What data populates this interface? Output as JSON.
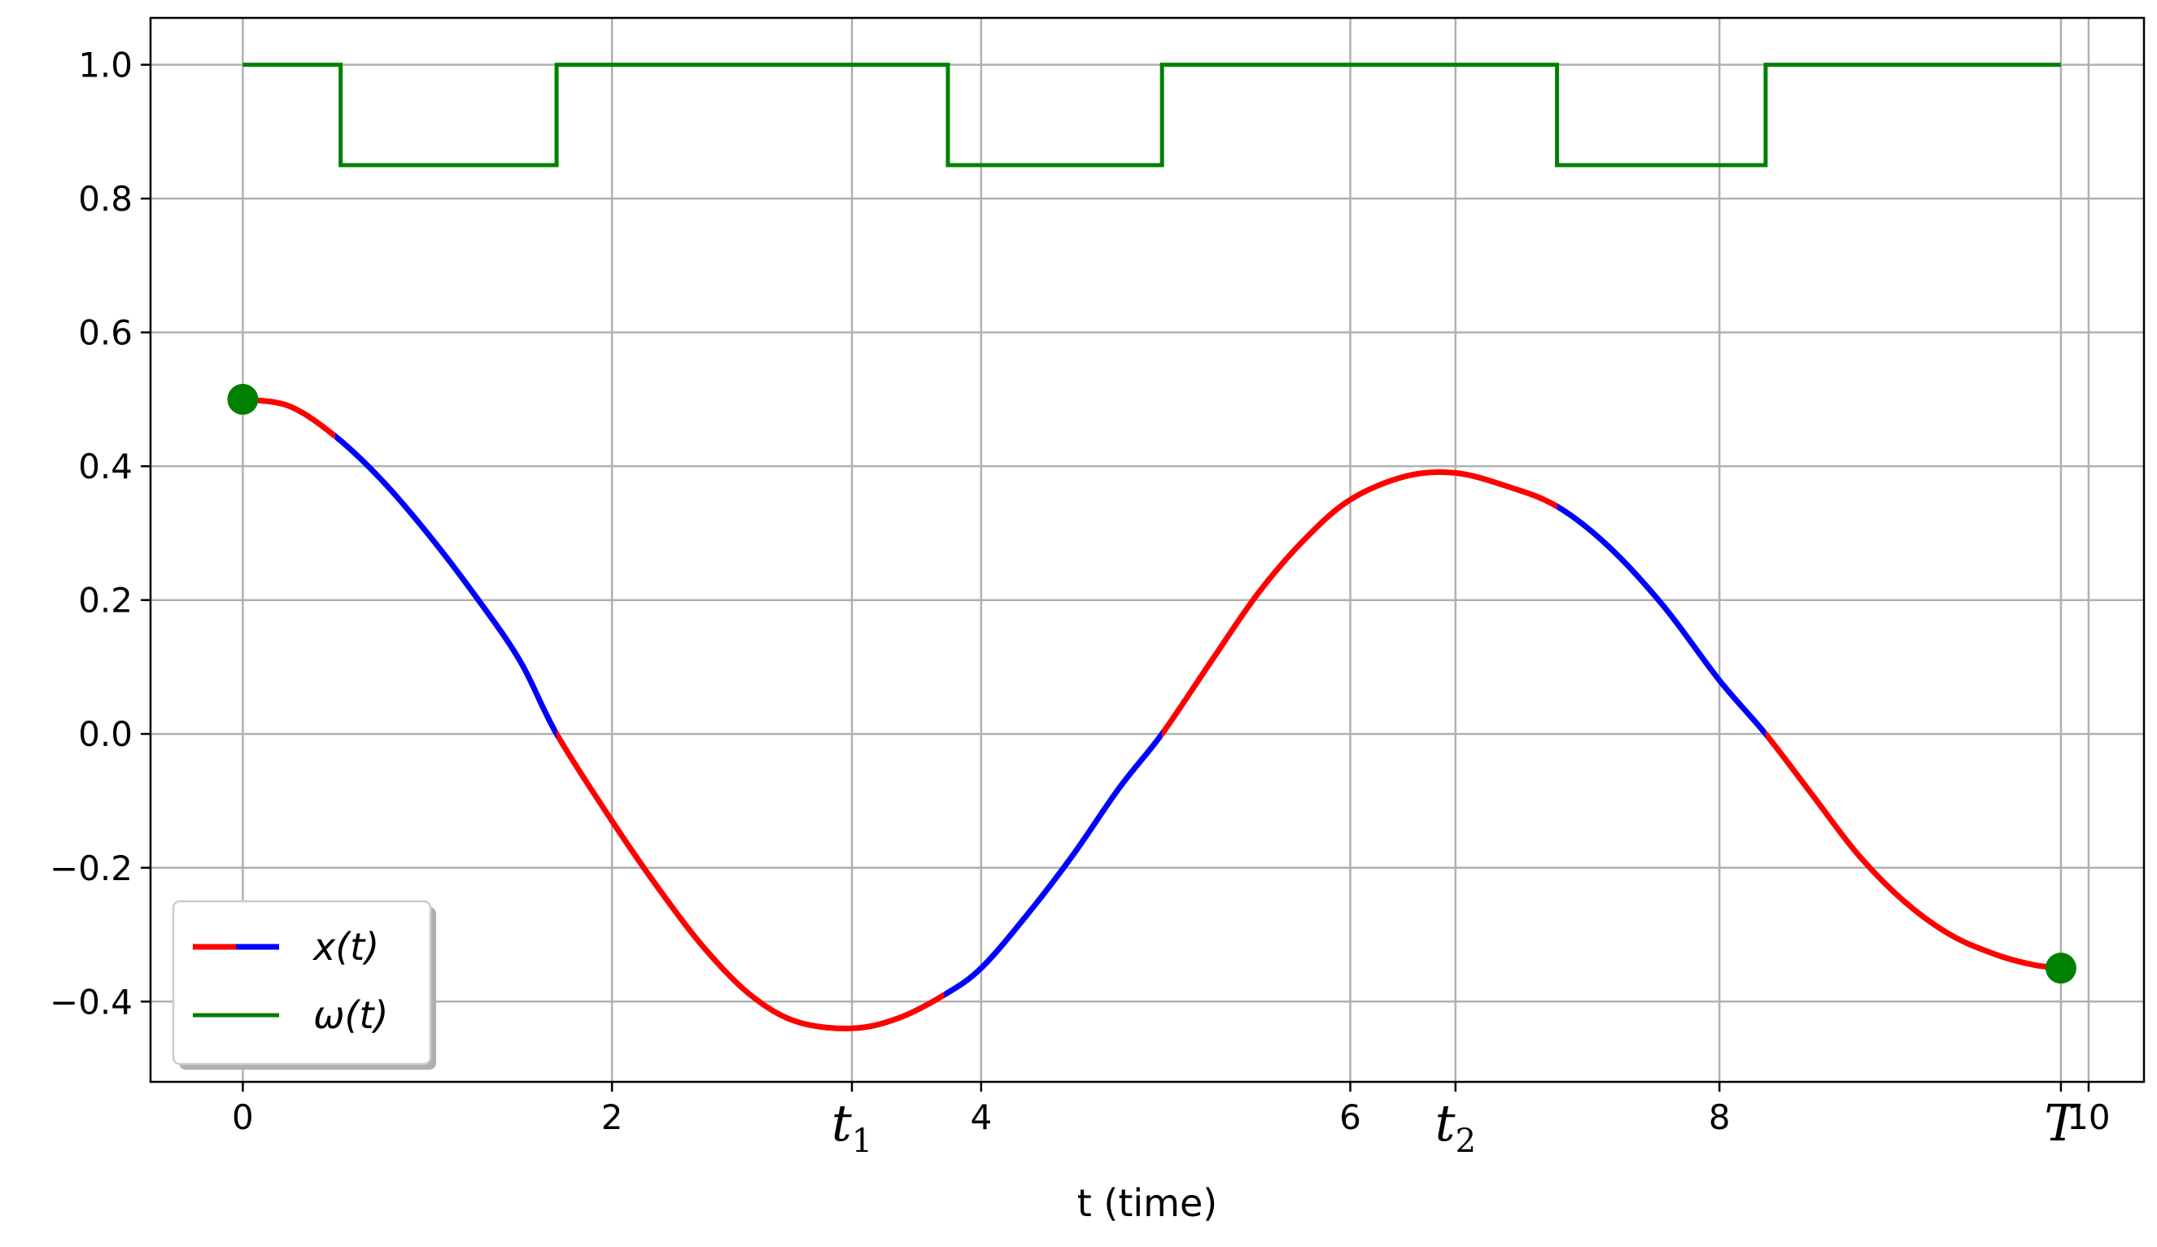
{
  "chart_data": {
    "type": "line",
    "xlabel": "t (time)",
    "xlim": [
      -0.5,
      10.3
    ],
    "ylim": [
      -0.52,
      1.07
    ],
    "grid": true,
    "legend_placement": "lower-left",
    "x_ticks": [
      {
        "value": 0,
        "label": "0"
      },
      {
        "value": 2,
        "label": "2"
      },
      {
        "value": 4,
        "label": "4"
      },
      {
        "value": 6,
        "label": "6"
      },
      {
        "value": 8,
        "label": "8"
      },
      {
        "value": 10,
        "label": "10"
      }
    ],
    "special_ticks": [
      {
        "value": 3.3,
        "label": "t",
        "sub": "1"
      },
      {
        "value": 6.57,
        "label": "t",
        "sub": "2"
      },
      {
        "value": 9.85,
        "label": "T",
        "sub": ""
      }
    ],
    "y_ticks": [
      {
        "value": 1.0,
        "label": "1.0"
      },
      {
        "value": 0.8,
        "label": "0.8"
      },
      {
        "value": 0.6,
        "label": "0.6"
      },
      {
        "value": 0.4,
        "label": "0.4"
      },
      {
        "value": 0.2,
        "label": "0.2"
      },
      {
        "value": 0.0,
        "label": "0.0"
      },
      {
        "value": -0.2,
        "label": "−0.2"
      },
      {
        "value": -0.4,
        "label": "−0.4"
      }
    ],
    "series": [
      {
        "name": "x(t)",
        "legend_label": "x(t)",
        "colors": {
          "high": "#ff0000",
          "low": "#0000ff"
        },
        "x": [
          0.0,
          0.25,
          0.5,
          0.75,
          1.0,
          1.25,
          1.5,
          1.7,
          2.0,
          2.25,
          2.5,
          2.75,
          3.0,
          3.3,
          3.55,
          3.8,
          4.0,
          4.25,
          4.5,
          4.75,
          4.98,
          5.25,
          5.5,
          5.75,
          6.0,
          6.3,
          6.57,
          6.85,
          7.12,
          7.4,
          7.7,
          8.0,
          8.25,
          8.5,
          8.75,
          9.0,
          9.25,
          9.5,
          9.7,
          9.85
        ],
        "y": [
          0.5,
          0.49,
          0.445,
          0.38,
          0.3,
          0.21,
          0.11,
          0.0,
          -0.13,
          -0.23,
          -0.32,
          -0.39,
          -0.43,
          -0.44,
          -0.425,
          -0.39,
          -0.35,
          -0.27,
          -0.18,
          -0.08,
          0.0,
          0.11,
          0.21,
          0.29,
          0.35,
          0.385,
          0.39,
          0.37,
          0.34,
          0.28,
          0.19,
          0.08,
          0.0,
          -0.09,
          -0.18,
          -0.25,
          -0.3,
          -0.33,
          -0.345,
          -0.35
        ],
        "segments": [
          {
            "from": 0.0,
            "to": 0.5,
            "color": "high"
          },
          {
            "from": 0.5,
            "to": 1.7,
            "color": "low"
          },
          {
            "from": 1.7,
            "to": 3.8,
            "color": "high"
          },
          {
            "from": 3.8,
            "to": 4.98,
            "color": "low"
          },
          {
            "from": 4.98,
            "to": 7.12,
            "color": "high"
          },
          {
            "from": 7.12,
            "to": 8.25,
            "color": "low"
          },
          {
            "from": 8.25,
            "to": 9.85,
            "color": "high"
          }
        ],
        "endpoints": [
          {
            "x": 0.0,
            "y": 0.5
          },
          {
            "x": 9.85,
            "y": -0.35
          }
        ],
        "endpoint_color": "#008000"
      },
      {
        "name": "ω(t)",
        "legend_label": "ω(t)",
        "color": "#008000",
        "x": [
          0.0,
          0.53,
          0.53,
          1.7,
          1.7,
          3.82,
          3.82,
          4.98,
          4.98,
          7.12,
          7.12,
          8.25,
          8.25,
          9.85
        ],
        "y": [
          1.0,
          1.0,
          0.85,
          0.85,
          1.0,
          1.0,
          0.85,
          0.85,
          1.0,
          1.0,
          0.85,
          0.85,
          1.0,
          1.0
        ]
      }
    ]
  }
}
